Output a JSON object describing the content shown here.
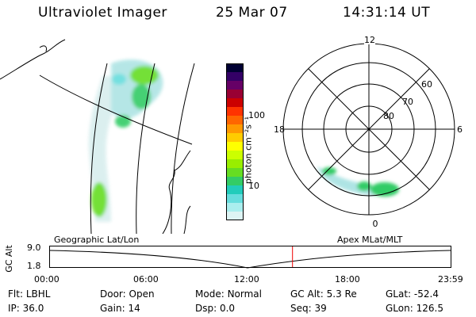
{
  "header": {
    "instrument": "Ultraviolet Imager",
    "date": "25 Mar 07",
    "time": "14:31:14 UT"
  },
  "colorbar": {
    "unit_label": "photon cm⁻²s⁻¹",
    "ticks": [
      "100",
      "10"
    ],
    "colors": [
      "#000033",
      "#330066",
      "#660066",
      "#990033",
      "#cc0000",
      "#ff3300",
      "#ff6600",
      "#ff9900",
      "#ffcc00",
      "#ffff00",
      "#ccff00",
      "#99ee00",
      "#66dd22",
      "#33cc66",
      "#22ccbb",
      "#66dddd",
      "#aaeeee",
      "#ddf4f4"
    ]
  },
  "polar_plot": {
    "mlt_labels": {
      "top": "12",
      "left": "18",
      "right": "6",
      "bottom": "0"
    },
    "lat_labels": [
      "60",
      "70",
      "80"
    ]
  },
  "timeline": {
    "left_label": "Geographic Lat/Lon",
    "right_label": "Apex MLat/MLT",
    "axis_title": "GC Alt",
    "y_ticks": [
      "9.0",
      "1.8"
    ],
    "x_ticks": [
      "00:00",
      "06:00",
      "12:00",
      "18:00",
      "23:59"
    ],
    "current_time_hours": 14.52
  },
  "status": {
    "row1": [
      {
        "label": "Flt:",
        "value": "LBHL"
      },
      {
        "label": "Door:",
        "value": "Open"
      },
      {
        "label": "Mode:",
        "value": "Normal"
      },
      {
        "label": "GC Alt:",
        "value": "5.3 Re"
      },
      {
        "label": "GLat:",
        "value": "-52.4"
      }
    ],
    "row2": [
      {
        "label": "IP:",
        "value": "36.0"
      },
      {
        "label": "Gain:",
        "value": "14"
      },
      {
        "label": "Dsp:",
        "value": "0.0"
      },
      {
        "label": "Seq:",
        "value": "39"
      },
      {
        "label": "GLon:",
        "value": "126.5"
      }
    ]
  }
}
